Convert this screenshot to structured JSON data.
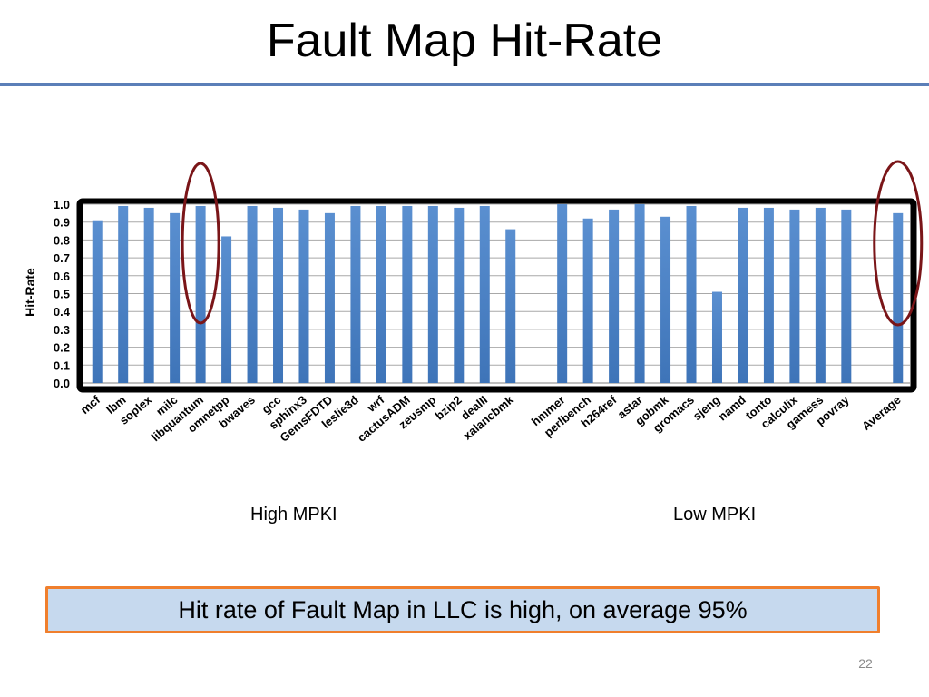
{
  "slide": {
    "title": "Fault Map Hit-Rate",
    "group_labels": {
      "high": "High MPKI",
      "low": "Low MPKI"
    },
    "callout": "Hit rate of Fault Map in LLC is high, on average 95%",
    "page_number": "22"
  },
  "colors": {
    "bar": "#3e74b8",
    "bar_light": "#5a8fd0",
    "frame": "#000000",
    "highlight": "#7a1518",
    "rule": "#5b7fb8",
    "callout_fill": "#c6d9ee",
    "callout_border": "#f07f2d"
  },
  "chart_data": {
    "type": "bar",
    "title": "",
    "xlabel": "",
    "ylabel": "Hit-Rate",
    "ylim": [
      0,
      1.0
    ],
    "yticks": [
      "0.0",
      "0.1",
      "0.2",
      "0.3",
      "0.4",
      "0.5",
      "0.6",
      "0.7",
      "0.8",
      "0.9",
      "1.0"
    ],
    "grid": true,
    "categories": [
      "mcf",
      "lbm",
      "soplex",
      "milc",
      "libquantum",
      "omnetpp",
      "bwaves",
      "gcc",
      "sphinx3",
      "GemsFDTD",
      "leslie3d",
      "wrf",
      "cactusADM",
      "zeusmp",
      "bzip2",
      "dealII",
      "xalancbmk",
      "",
      "hmmer",
      "perlbench",
      "h264ref",
      "astar",
      "gobmk",
      "gromacs",
      "sjeng",
      "namd",
      "tonto",
      "calculix",
      "gamess",
      "povray",
      "",
      "Average"
    ],
    "values": [
      0.91,
      0.99,
      0.98,
      0.95,
      0.99,
      0.82,
      0.99,
      0.98,
      0.97,
      0.95,
      0.99,
      0.99,
      0.99,
      0.99,
      0.98,
      0.99,
      0.86,
      null,
      1.0,
      0.92,
      0.97,
      1.0,
      0.93,
      0.99,
      0.51,
      0.98,
      0.98,
      0.97,
      0.98,
      0.97,
      null,
      0.95
    ],
    "highlighted": [
      "libquantum",
      "Average"
    ]
  }
}
